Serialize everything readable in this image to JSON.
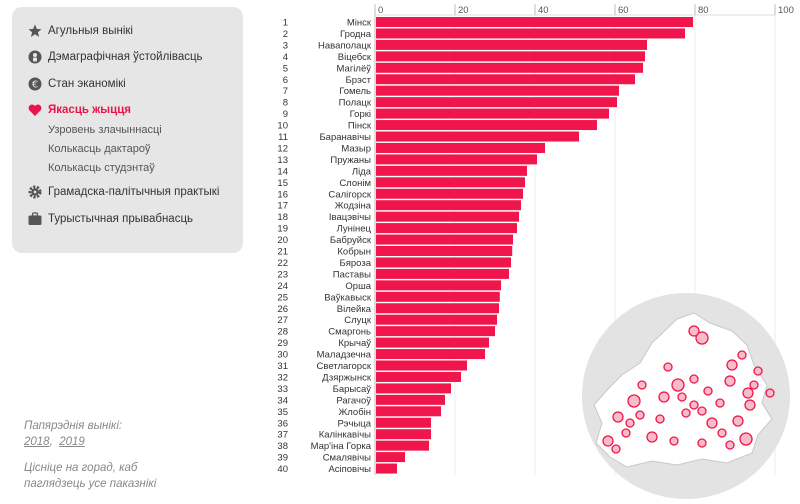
{
  "sidebar": {
    "items": [
      {
        "label": "Агульныя вынікі",
        "icon": "star-icon"
      },
      {
        "label": "Дэмаграфічная ўстойлівасць",
        "icon": "demography-icon"
      },
      {
        "label": "Стан эканомікі",
        "icon": "euro-icon"
      },
      {
        "label": "Якасць жыцця",
        "icon": "heart-icon",
        "active": true
      },
      {
        "label": "Грамадска-палітычныя практыкі",
        "icon": "gear-icon"
      },
      {
        "label": "Турыстычная прывабнасць",
        "icon": "suitcase-icon"
      }
    ],
    "subitems": [
      "Узровень злачыннасці",
      "Колькасць дактароў",
      "Колькасць студэнтаў"
    ]
  },
  "notes": {
    "previous_label": "Папярэднія вынікі:",
    "years": [
      "2018",
      "2019"
    ],
    "hint": "Цісніце на горад, каб паглядзець усе паказнікі"
  },
  "colors": {
    "bar": "#f0154b",
    "accent": "#e8154a"
  },
  "chart_data": {
    "type": "bar",
    "orientation": "horizontal",
    "xlim": [
      0,
      100
    ],
    "xticks": [
      0,
      20,
      40,
      60,
      80,
      100
    ],
    "ranks": [
      1,
      2,
      3,
      4,
      5,
      6,
      7,
      8,
      9,
      10,
      11,
      12,
      13,
      14,
      15,
      16,
      17,
      18,
      19,
      20,
      21,
      22,
      23,
      24,
      25,
      26,
      27,
      28,
      29,
      30,
      31,
      32,
      33,
      34,
      35,
      36,
      37,
      38,
      39,
      40
    ],
    "categories": [
      "Мінск",
      "Гродна",
      "Наваполацк",
      "Віцебск",
      "Магілёў",
      "Брэст",
      "Гомель",
      "Полацк",
      "Горкі",
      "Пінск",
      "Баранавічы",
      "Мазыр",
      "Пружаны",
      "Ліда",
      "Слонім",
      "Салігорск",
      "Жодзіна",
      "Івацэвічы",
      "Лунінец",
      "Бабруйск",
      "Кобрын",
      "Бяроза",
      "Паставы",
      "Орша",
      "Ваўкавыск",
      "Вілейка",
      "Слуцк",
      "Смаргонь",
      "Крычаў",
      "Маладзечна",
      "Светлагорск",
      "Дзяржынск",
      "Барысаў",
      "Рагачоў",
      "Жлобін",
      "Рэчыца",
      "Калінкавічы",
      "Мар'іна Горка",
      "Смалявічы",
      "Асіповічы"
    ],
    "values": [
      79.5,
      77.5,
      68,
      67.5,
      67,
      65,
      61,
      60.5,
      58.5,
      55.5,
      51,
      42.5,
      40.5,
      38,
      37.5,
      37,
      36.5,
      36,
      35.5,
      34.5,
      34.3,
      34,
      33.5,
      31.5,
      31.2,
      31,
      30.5,
      30,
      28.5,
      27.5,
      23,
      21.5,
      19,
      17.5,
      16.5,
      14,
      14,
      13.5,
      7.5,
      5.5
    ]
  },
  "map": {
    "city_markers": [
      "Мінск",
      "Гродна",
      "Наваполацк",
      "Віцебск",
      "Магілёў",
      "Брэст",
      "Гомель",
      "Полацк",
      "Горкі",
      "Пінск",
      "Баранавічы",
      "Мазыр",
      "Пружаны",
      "Ліда",
      "Слонім",
      "Салігорск",
      "Жодзіна",
      "Івацэвічы",
      "Лунінец",
      "Бабруйск",
      "Кобрын",
      "Бяроза",
      "Паставы",
      "Орша",
      "Ваўкавыск",
      "Вілейка",
      "Слуцк",
      "Смаргонь",
      "Крычаў",
      "Маладзечна",
      "Светлагорск",
      "Дзяржынск",
      "Барысаў",
      "Рагачоў",
      "Жлобін",
      "Рэчыца",
      "Калінкавічы"
    ]
  }
}
